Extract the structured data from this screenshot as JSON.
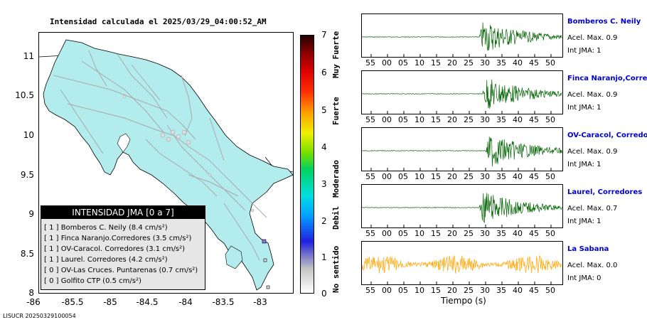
{
  "map": {
    "title": "Intensidad calculada el 2025/03/29_04:00:52_AM",
    "yticks": [
      "11",
      "10.5",
      "10",
      "9.5",
      "9",
      "8.5",
      "8"
    ],
    "xticks": [
      "-86",
      "-85.5",
      "-85",
      "-84.5",
      "-84",
      "-83.5",
      "-83"
    ],
    "legend": {
      "header": "INTENSIDAD JMA [0 a 7]",
      "rows": [
        "[ 1 ]  Bomberos C. Neily (8.4 cm/s²)",
        "[ 1 ]  Finca Naranjo.Corredores (3.5 cm/s²)",
        "[ 1 ]  OV-Caracol. Corredores (3.1 cm/s²)",
        "[ 1 ]  Laurel. Corredores (4.2 cm/s²)",
        "[ 0 ]  OV-Las Cruces. Puntarenas (0.7 cm/s²)",
        "[ 0 ]  Golfito CTP (0.5 cm/s²)"
      ]
    },
    "colors": {
      "land": "#b3ecec",
      "roads": "#a9a9a9",
      "coast": "#000000"
    }
  },
  "colorbar": {
    "ticks": [
      "7",
      "6",
      "5",
      "4",
      "3",
      "2",
      "1",
      "0"
    ],
    "labels": [
      "Muy Fuerte",
      "Fuerte",
      "Moderado",
      "Debil",
      "No sentido"
    ]
  },
  "footer": "LISUCR 20250329100054",
  "seismograms": {
    "xlabel": "Tiempo (s)",
    "ticks": [
      "55",
      "00",
      "05",
      "10",
      "15",
      "20",
      "25",
      "30",
      "35",
      "40",
      "45",
      "50"
    ],
    "stations": [
      {
        "name": "Bomberos C. Neily",
        "acel": "Acel. Max. 0.9",
        "int": "Int JMA: 1",
        "color": "#006400"
      },
      {
        "name": "Finca Naranjo,Corredores",
        "acel": "Acel. Max. 0.9",
        "int": "Int JMA: 1",
        "color": "#006400"
      },
      {
        "name": "OV-Caracol, Corredores",
        "acel": "Acel. Max. 0.9",
        "int": "Int JMA: 1",
        "color": "#006400"
      },
      {
        "name": "Laurel, Corredores",
        "acel": "Acel. Max. 0.7",
        "int": "Int JMA: 1",
        "color": "#006400"
      },
      {
        "name": "La Sabana",
        "acel": "Acel. Max. 0.0",
        "int": "Int JMA: 0",
        "color": "#ffa500"
      }
    ]
  },
  "chart_data": [
    {
      "type": "scatter",
      "title": "Intensidad calculada el 2025/03/29_04:00:52_AM",
      "x_ticks": [
        -86,
        -85.5,
        -85,
        -84.5,
        -84,
        -83.5,
        -83
      ],
      "y_ticks": [
        8,
        8.5,
        9,
        9.5,
        10,
        10.5,
        11
      ],
      "xlim": [
        -86,
        -82.55
      ],
      "ylim": [
        8,
        11.3
      ],
      "grid": false,
      "legend_placement": "bottom-left",
      "series": [
        {
          "name": "Bomberos C. Neily",
          "intensity": 1,
          "pga": 8.4
        },
        {
          "name": "Finca Naranjo.Corredores",
          "intensity": 1,
          "pga": 3.5
        },
        {
          "name": "OV-Caracol. Corredores",
          "intensity": 1,
          "pga": 3.1
        },
        {
          "name": "Laurel. Corredores",
          "intensity": 1,
          "pga": 4.2
        },
        {
          "name": "OV-Las Cruces. Puntarenas",
          "intensity": 0,
          "pga": 0.7
        },
        {
          "name": "Golfito CTP",
          "intensity": 0,
          "pga": 0.5
        }
      ]
    },
    {
      "type": "line",
      "xlabel": "Tiempo (s)",
      "x_ticks": [
        55,
        0,
        5,
        10,
        15,
        20,
        25,
        30,
        35,
        40,
        45,
        50
      ],
      "series": [
        {
          "name": "Bomberos C. Neily",
          "acel_max": 0.9,
          "int_jma": 1,
          "onset": 28
        },
        {
          "name": "Finca Naranjo,Corredores",
          "acel_max": 0.9,
          "int_jma": 1,
          "onset": 29
        },
        {
          "name": "OV-Caracol, Corredores",
          "acel_max": 0.9,
          "int_jma": 1,
          "onset": 30
        },
        {
          "name": "Laurel, Corredores",
          "acel_max": 0.7,
          "int_jma": 1,
          "onset": 28
        },
        {
          "name": "La Sabana",
          "acel_max": 0.0,
          "int_jma": 0,
          "onset": null
        }
      ]
    }
  ]
}
